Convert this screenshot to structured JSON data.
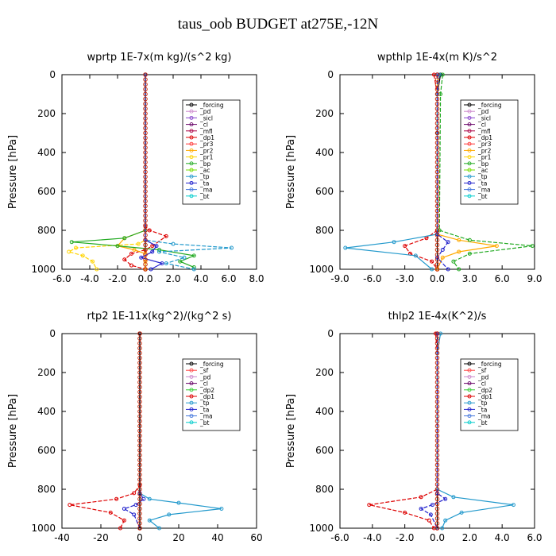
{
  "title": "taus_oob  BUDGET at275E,-12N",
  "colors": {
    "forcing": "#000000",
    "pd": "#cc88cc",
    "sicl": "#8844cc",
    "cl": "#660066",
    "mfl": "#aa0044",
    "dp1": "#dd0000",
    "pr3": "#ff3333",
    "pr2": "#ffaa00",
    "pr1": "#ffd400",
    "bp": "#22aa22",
    "ac": "#77dd00",
    "tp": "#2299cc",
    "ta": "#2222cc",
    "ma": "#4477dd",
    "bt": "#00cccc",
    "sf": "#ff4444",
    "dp2": "#33cc33"
  },
  "chart_data": [
    {
      "type": "line",
      "title": "wprtp  1E-7x(m kg)/(s^2 kg)",
      "ylabel": "Pressure [hPa]",
      "xlim": [
        -6,
        8
      ],
      "ylim": [
        1000,
        0
      ],
      "xticks": [
        "-6.0",
        "-4.0",
        "-2.0",
        "0.0",
        "2.0",
        "4.0",
        "6.0",
        "8.0"
      ],
      "yticks": [
        "0",
        "200",
        "400",
        "600",
        "800",
        "1000"
      ],
      "legend": [
        "_forcing",
        "_pd",
        "_sicl",
        "_cl",
        "_mfl",
        "_dp1",
        "_pr3",
        "_pr2",
        "_pr1",
        "_bp",
        "_ac",
        "_tp",
        "_ta",
        "_ma",
        "_bt"
      ],
      "series": [
        {
          "name": "_forcing",
          "key": "forcing",
          "x": [
            0,
            0
          ],
          "y": [
            0,
            1000
          ]
        },
        {
          "name": "_dp1",
          "key": "dp1",
          "x": [
            0,
            0,
            0.3,
            1.5,
            0.5,
            0,
            -1.0,
            -1.5,
            -1.0,
            0
          ],
          "y": [
            0,
            780,
            800,
            830,
            880,
            900,
            920,
            950,
            980,
            1000
          ]
        },
        {
          "name": "_pr2",
          "key": "pr2",
          "x": [
            0,
            0,
            -1.5,
            -2.0,
            -0.8,
            0,
            0,
            0
          ],
          "y": [
            0,
            800,
            840,
            880,
            900,
            920,
            960,
            1000
          ]
        },
        {
          "name": "_pr1",
          "key": "pr1",
          "x": [
            0,
            0,
            -0.5,
            -5.0,
            -5.5,
            -4.5,
            -3.8,
            -3.5
          ],
          "y": [
            0,
            850,
            870,
            890,
            910,
            930,
            960,
            1000
          ]
        },
        {
          "name": "_bp",
          "key": "bp",
          "x": [
            0,
            0,
            -1.5,
            -5.3,
            -2.0,
            1.0,
            3.5,
            2.5,
            3.5
          ],
          "y": [
            0,
            800,
            840,
            860,
            880,
            900,
            930,
            960,
            990
          ]
        },
        {
          "name": "_tp",
          "key": "tp",
          "x": [
            0,
            0,
            2.0,
            6.2,
            1.0,
            2.8,
            1.5,
            3.5
          ],
          "y": [
            0,
            850,
            870,
            890,
            910,
            940,
            970,
            1000
          ]
        },
        {
          "name": "_ta",
          "key": "ta",
          "x": [
            0,
            0,
            0.8,
            0.5,
            -0.3,
            1.2,
            0.4
          ],
          "y": [
            0,
            850,
            880,
            910,
            940,
            970,
            1000
          ]
        }
      ]
    },
    {
      "type": "line",
      "title": "wpthlp  1E-4x(m K)/s^2",
      "ylabel": "Pressure [hPa]",
      "xlim": [
        -9,
        9
      ],
      "ylim": [
        1000,
        0
      ],
      "xticks": [
        "-9.0",
        "-6.0",
        "-3.0",
        "0.0",
        "3.0",
        "6.0",
        "9.0"
      ],
      "yticks": [
        "0",
        "200",
        "400",
        "600",
        "800",
        "1000"
      ],
      "legend": [
        "_forcing",
        "_pd",
        "_sicl",
        "_cl",
        "_mfl",
        "_dp1",
        "_pr3",
        "_pr2",
        "_pr1",
        "_bp",
        "_ac",
        "_tp",
        "_ta",
        "_ma",
        "_bt"
      ],
      "series": [
        {
          "name": "_forcing",
          "key": "forcing",
          "x": [
            0.3,
            0,
            0,
            0
          ],
          "y": [
            0,
            100,
            300,
            1000
          ]
        },
        {
          "name": "_dp1",
          "key": "dp1",
          "x": [
            -0.3,
            0,
            0,
            -1,
            -3,
            -2.5,
            -0.5,
            0
          ],
          "y": [
            0,
            100,
            800,
            840,
            880,
            920,
            960,
            1000
          ]
        },
        {
          "name": "_pr2",
          "key": "pr2",
          "x": [
            0,
            0,
            2,
            5.5,
            2,
            0.5,
            0
          ],
          "y": [
            0,
            820,
            850,
            880,
            910,
            940,
            1000
          ]
        },
        {
          "name": "_bp",
          "key": "bp",
          "x": [
            0.5,
            0.3,
            0.2,
            3,
            8.8,
            3,
            1.5,
            2
          ],
          "y": [
            0,
            100,
            800,
            850,
            880,
            920,
            960,
            1000
          ]
        },
        {
          "name": "_tp",
          "key": "tp",
          "x": [
            0.2,
            0,
            0,
            -4,
            -8.5,
            -2,
            -0.5
          ],
          "y": [
            0,
            100,
            820,
            860,
            890,
            930,
            1000
          ]
        },
        {
          "name": "_ta",
          "key": "ta",
          "x": [
            0,
            0,
            1,
            0.5,
            0,
            1
          ],
          "y": [
            0,
            820,
            860,
            900,
            940,
            1000
          ]
        }
      ]
    },
    {
      "type": "line",
      "title": "rtp2  1E-11x(kg^2)/(kg^2 s)",
      "ylabel": "Pressure [hPa]",
      "xlim": [
        -40,
        60
      ],
      "ylim": [
        1000,
        0
      ],
      "xticks": [
        "-40",
        "-20",
        "0",
        "20",
        "40",
        "60"
      ],
      "yticks": [
        "0",
        "200",
        "400",
        "600",
        "800",
        "1000"
      ],
      "legend": [
        "_forcing",
        "_sf",
        "_pd",
        "_cl",
        "_dp2",
        "_dp1",
        "_tp",
        "_ta",
        "_ma",
        "_bt"
      ],
      "series": [
        {
          "name": "_forcing",
          "key": "forcing",
          "x": [
            0,
            0
          ],
          "y": [
            0,
            1000
          ]
        },
        {
          "name": "_dp1",
          "key": "dp1",
          "x": [
            0,
            0,
            -3,
            -12,
            -36,
            -15,
            -8,
            -10
          ],
          "y": [
            0,
            780,
            820,
            850,
            880,
            920,
            960,
            1000
          ]
        },
        {
          "name": "_tp",
          "key": "tp",
          "x": [
            0,
            0,
            5,
            20,
            42,
            15,
            5,
            10
          ],
          "y": [
            0,
            820,
            850,
            870,
            900,
            930,
            960,
            1000
          ]
        },
        {
          "name": "_ta",
          "key": "ta",
          "x": [
            0,
            0,
            2,
            -2,
            -8,
            -3,
            0
          ],
          "y": [
            0,
            820,
            850,
            880,
            900,
            930,
            1000
          ]
        },
        {
          "name": "_pd",
          "key": "forcing",
          "x": [
            0,
            0
          ],
          "y": [
            0,
            1000
          ]
        }
      ]
    },
    {
      "type": "line",
      "title": "thlp2  1E-4x(K^2)/s",
      "ylabel": "Pressure [hPa]",
      "xlim": [
        -6,
        6
      ],
      "ylim": [
        1000,
        0
      ],
      "xticks": [
        "-6.0",
        "-4.0",
        "-2.0",
        "0.0",
        "2.0",
        "4.0",
        "6.0"
      ],
      "yticks": [
        "0",
        "200",
        "400",
        "600",
        "800",
        "1000"
      ],
      "legend": [
        "_forcing",
        "_sf",
        "_pd",
        "_cl",
        "_dp2",
        "_dp1",
        "_tp",
        "_ta",
        "_ma",
        "_bt"
      ],
      "series": [
        {
          "name": "_forcing",
          "key": "forcing",
          "x": [
            0,
            0
          ],
          "y": [
            0,
            1000
          ]
        },
        {
          "name": "_dp1",
          "key": "dp1",
          "x": [
            -0.1,
            0,
            0,
            -1,
            -4.2,
            -2,
            -0.5,
            -0.2
          ],
          "y": [
            0,
            100,
            800,
            840,
            880,
            920,
            960,
            1000
          ]
        },
        {
          "name": "_tp",
          "key": "tp",
          "x": [
            0.2,
            0,
            0,
            1,
            4.7,
            1.5,
            0.5,
            0.3
          ],
          "y": [
            0,
            100,
            800,
            840,
            880,
            920,
            960,
            1000
          ]
        },
        {
          "name": "_ta",
          "key": "ta",
          "x": [
            0,
            0,
            0.5,
            -0.3,
            -1,
            -0.4,
            0
          ],
          "y": [
            0,
            820,
            850,
            880,
            900,
            930,
            1000
          ]
        }
      ]
    }
  ]
}
